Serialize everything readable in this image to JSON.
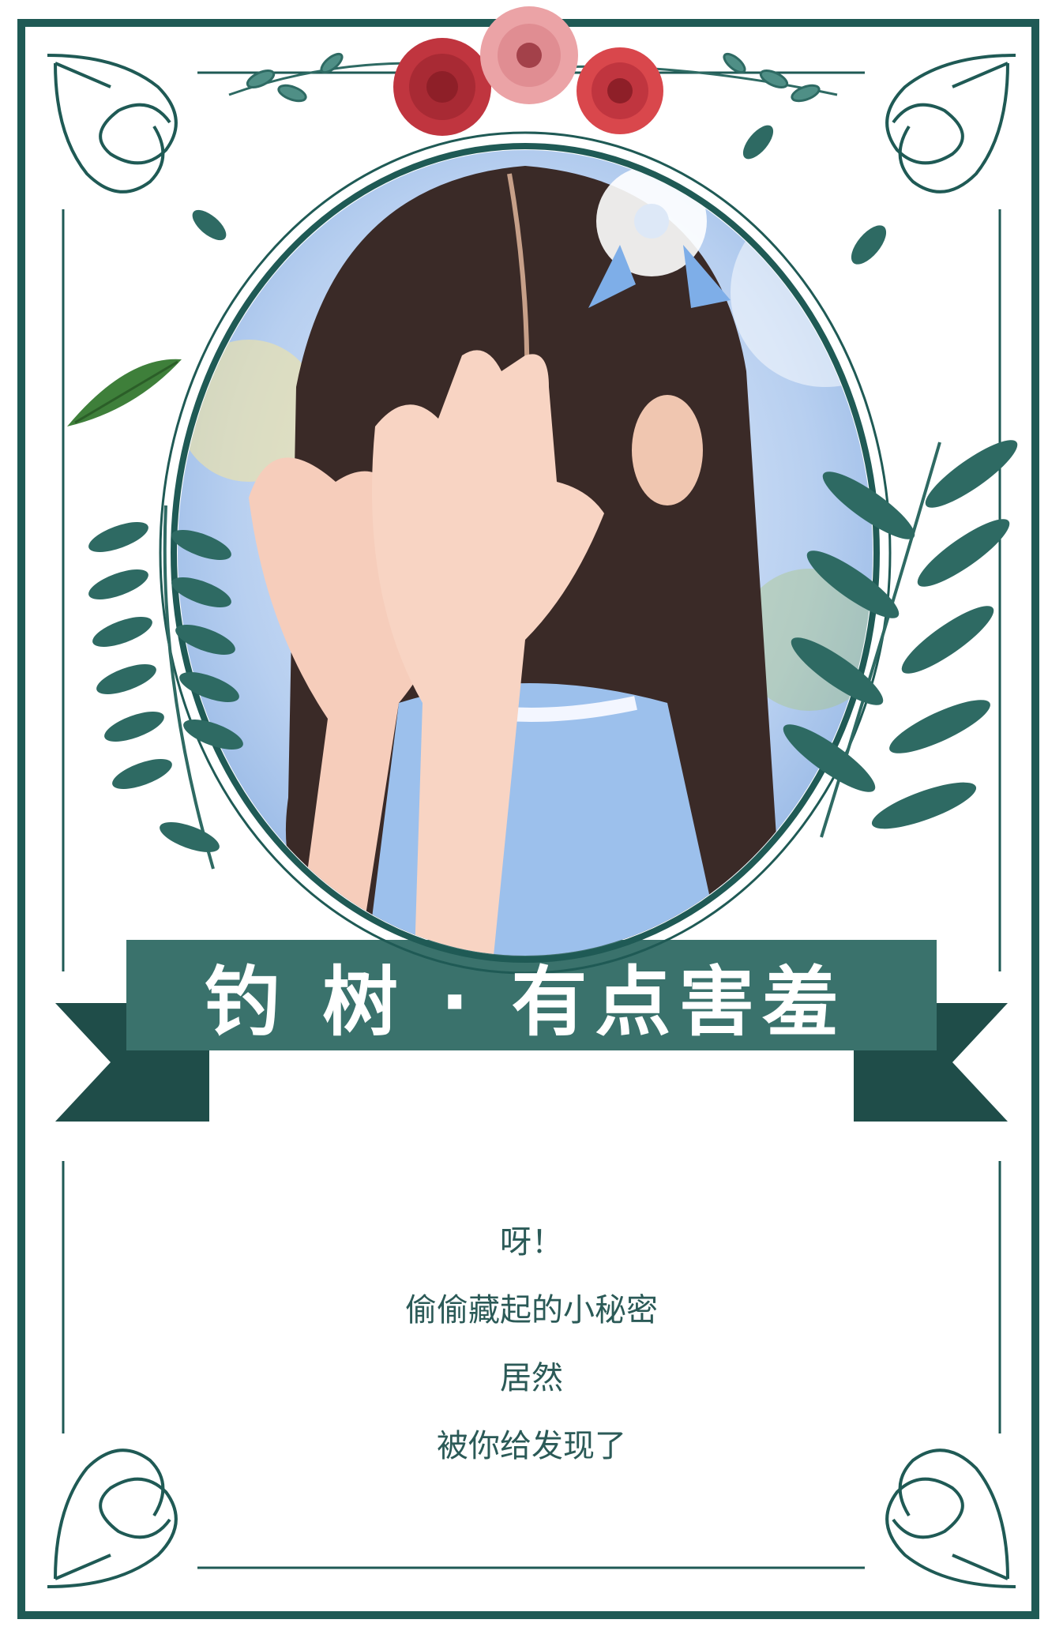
{
  "banner": {
    "title": "钓 树 · 有点害羞"
  },
  "verse": {
    "lines": [
      "呀！",
      "偷偷藏起的小秘密",
      "居然",
      "被你给发现了"
    ]
  },
  "colors": {
    "frame": "#1f5a55",
    "banner": "#3a726c",
    "banner_dark": "#1f4d49",
    "leaf": "#2e6a63",
    "leaf_light": "#4f8f86",
    "text": "#2b5a57",
    "rose_red": "#c0353f",
    "rose_pink": "#eba3a6"
  },
  "photo": {
    "subject": "girl-covering-face-photo"
  },
  "icons": [
    "corner-flourish-icon",
    "rose-icon",
    "leaf-branch-icon",
    "vine-icon"
  ]
}
